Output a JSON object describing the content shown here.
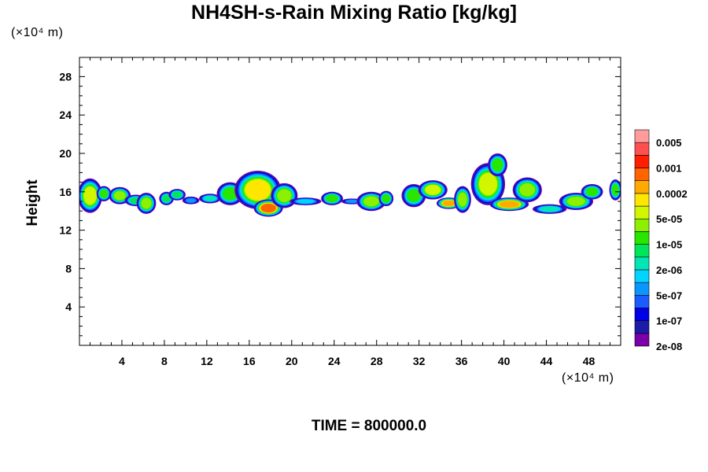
{
  "chart_data": {
    "type": "heatmap",
    "title": "NH4SH-s-Rain Mixing Ratio [kg/kg]",
    "ylabel": "Height",
    "xlabel": "",
    "x_unit_label": "(×10⁴ m)",
    "y_unit_label": "(×10⁴ m)",
    "xlim": [
      0,
      51
    ],
    "ylim": [
      0,
      30
    ],
    "x_ticks": [
      "4",
      "8",
      "12",
      "16",
      "20",
      "24",
      "28",
      "32",
      "36",
      "40",
      "44",
      "48"
    ],
    "y_ticks": [
      "4",
      "8",
      "12",
      "16",
      "20",
      "24",
      "28"
    ],
    "colorbar_labels": [
      "0.005",
      "0.001",
      "0.0002",
      "5e-05",
      "1e-05",
      "2e-06",
      "5e-07",
      "1e-07",
      "2e-08"
    ],
    "colorbar_colors": [
      "#7c00a8",
      "#1c1ca8",
      "#0000e6",
      "#1a5cff",
      "#0a96ff",
      "#00d4ff",
      "#00e6b4",
      "#00e65a",
      "#28e600",
      "#8cf000",
      "#d2f500",
      "#ffe600",
      "#ffaa00",
      "#ff6400",
      "#ff1e00",
      "#ff5050",
      "#ff9b9b"
    ],
    "cells": [
      {
        "x": 1.0,
        "y": 15.6,
        "rx": 1.0,
        "ry": 1.8,
        "lvl": 10
      },
      {
        "x": 2.3,
        "y": 15.8,
        "rx": 0.6,
        "ry": 0.8,
        "lvl": 8
      },
      {
        "x": 3.8,
        "y": 15.6,
        "rx": 0.9,
        "ry": 0.9,
        "lvl": 9
      },
      {
        "x": 5.3,
        "y": 15.1,
        "rx": 0.9,
        "ry": 0.6,
        "lvl": 7
      },
      {
        "x": 6.3,
        "y": 14.8,
        "rx": 0.8,
        "ry": 1.1,
        "lvl": 9
      },
      {
        "x": 8.2,
        "y": 15.3,
        "rx": 0.6,
        "ry": 0.7,
        "lvl": 7
      },
      {
        "x": 9.2,
        "y": 15.7,
        "rx": 0.7,
        "ry": 0.6,
        "lvl": 7
      },
      {
        "x": 10.5,
        "y": 15.1,
        "rx": 0.7,
        "ry": 0.4,
        "lvl": 4
      },
      {
        "x": 12.3,
        "y": 15.3,
        "rx": 0.9,
        "ry": 0.5,
        "lvl": 6
      },
      {
        "x": 14.2,
        "y": 15.8,
        "rx": 1.1,
        "ry": 1.2,
        "lvl": 8
      },
      {
        "x": 16.8,
        "y": 16.2,
        "rx": 1.9,
        "ry": 2.0,
        "lvl": 11
      },
      {
        "x": 17.8,
        "y": 14.3,
        "rx": 1.2,
        "ry": 0.9,
        "lvl": 13
      },
      {
        "x": 19.3,
        "y": 15.6,
        "rx": 1.1,
        "ry": 1.3,
        "lvl": 9
      },
      {
        "x": 21.3,
        "y": 15.0,
        "rx": 1.3,
        "ry": 0.4,
        "lvl": 5
      },
      {
        "x": 23.8,
        "y": 15.3,
        "rx": 0.9,
        "ry": 0.7,
        "lvl": 8
      },
      {
        "x": 25.7,
        "y": 15.0,
        "rx": 0.9,
        "ry": 0.3,
        "lvl": 4
      },
      {
        "x": 27.5,
        "y": 15.0,
        "rx": 1.2,
        "ry": 1.0,
        "lvl": 9
      },
      {
        "x": 28.9,
        "y": 15.3,
        "rx": 0.6,
        "ry": 0.8,
        "lvl": 8
      },
      {
        "x": 31.5,
        "y": 15.6,
        "rx": 1.0,
        "ry": 1.2,
        "lvl": 8
      },
      {
        "x": 33.3,
        "y": 16.2,
        "rx": 1.2,
        "ry": 1.0,
        "lvl": 10
      },
      {
        "x": 34.8,
        "y": 14.8,
        "rx": 1.0,
        "ry": 0.6,
        "lvl": 12
      },
      {
        "x": 36.1,
        "y": 15.2,
        "rx": 0.7,
        "ry": 1.4,
        "lvl": 9
      },
      {
        "x": 38.5,
        "y": 16.8,
        "rx": 1.4,
        "ry": 2.2,
        "lvl": 10
      },
      {
        "x": 39.4,
        "y": 18.8,
        "rx": 0.8,
        "ry": 1.2,
        "lvl": 8
      },
      {
        "x": 40.5,
        "y": 14.7,
        "rx": 1.6,
        "ry": 0.7,
        "lvl": 12
      },
      {
        "x": 42.2,
        "y": 16.2,
        "rx": 1.2,
        "ry": 1.3,
        "lvl": 9
      },
      {
        "x": 44.3,
        "y": 14.2,
        "rx": 1.4,
        "ry": 0.5,
        "lvl": 6
      },
      {
        "x": 46.8,
        "y": 15.0,
        "rx": 1.4,
        "ry": 0.9,
        "lvl": 9
      },
      {
        "x": 48.3,
        "y": 16.0,
        "rx": 0.9,
        "ry": 0.8,
        "lvl": 8
      },
      {
        "x": 50.5,
        "y": 16.2,
        "rx": 0.5,
        "ry": 1.1,
        "lvl": 8
      }
    ]
  },
  "time_label": "TIME = 800000.0"
}
